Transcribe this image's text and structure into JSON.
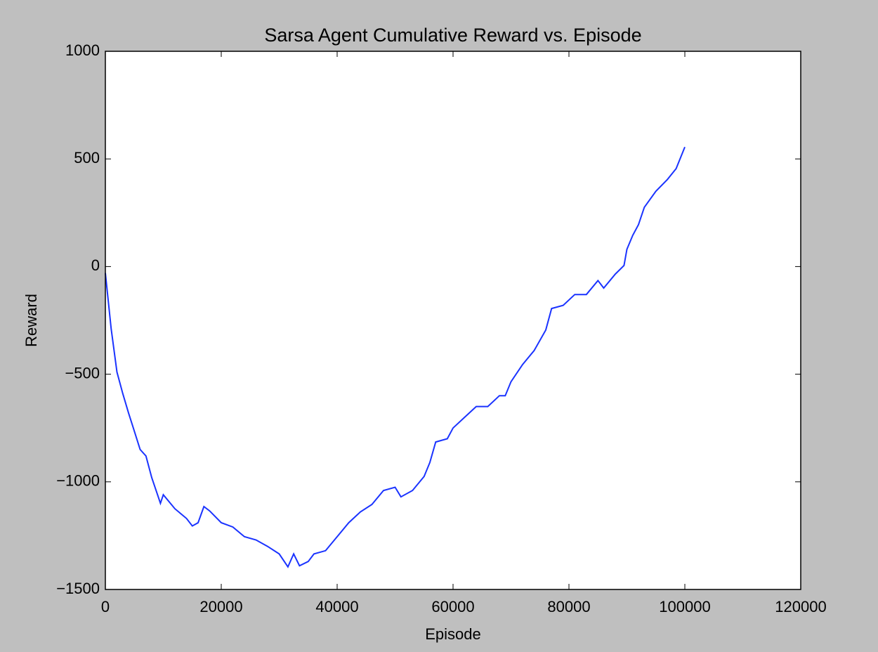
{
  "chart_data": {
    "type": "line",
    "title": "Sarsa Agent Cumulative Reward vs. Episode",
    "x_label": "Episode",
    "y_label": "Reward",
    "xlim": [
      0,
      120000
    ],
    "xticks": [
      0,
      20000,
      40000,
      60000,
      80000,
      100000,
      120000
    ],
    "ylim": [
      -1500,
      1000
    ],
    "yticks": [
      {
        "value": -1500,
        "label": "−1500"
      },
      {
        "value": -1000,
        "label": "−1000"
      },
      {
        "value": -500,
        "label": "−500"
      },
      0,
      500,
      1000
    ],
    "x": [
      0,
      1000,
      2000,
      3000,
      4000,
      5000,
      6000,
      7000,
      8000,
      9000,
      9500,
      10000,
      12000,
      14000,
      15000,
      16000,
      17000,
      18000,
      20000,
      22000,
      24000,
      26000,
      28000,
      30000,
      31500,
      32500,
      33500,
      35000,
      36000,
      38000,
      40000,
      42000,
      44000,
      46000,
      48000,
      50000,
      51000,
      53000,
      55000,
      56000,
      57000,
      59000,
      60000,
      62000,
      64000,
      66000,
      68000,
      69000,
      70000,
      72000,
      74000,
      76000,
      77000,
      79000,
      81000,
      83000,
      85000,
      86000,
      88000,
      89500,
      90000,
      91000,
      92000,
      93000,
      95000,
      97000,
      98500,
      100000
    ],
    "series": [
      {
        "name": "Sarsa",
        "color": "#1a33ff",
        "values": [
          -30,
          -290,
          -490,
          -590,
          -680,
          -765,
          -850,
          -880,
          -980,
          -1060,
          -1100,
          -1060,
          -1125,
          -1170,
          -1205,
          -1190,
          -1115,
          -1135,
          -1190,
          -1210,
          -1255,
          -1270,
          -1300,
          -1335,
          -1395,
          -1335,
          -1390,
          -1370,
          -1335,
          -1320,
          -1255,
          -1190,
          -1140,
          -1105,
          -1040,
          -1025,
          -1070,
          -1040,
          -975,
          -910,
          -815,
          -800,
          -750,
          -700,
          -650,
          -650,
          -600,
          -600,
          -535,
          -455,
          -390,
          -295,
          -195,
          -180,
          -130,
          -130,
          -65,
          -100,
          -35,
          5,
          80,
          145,
          195,
          275,
          350,
          405,
          455,
          555
        ]
      }
    ]
  }
}
